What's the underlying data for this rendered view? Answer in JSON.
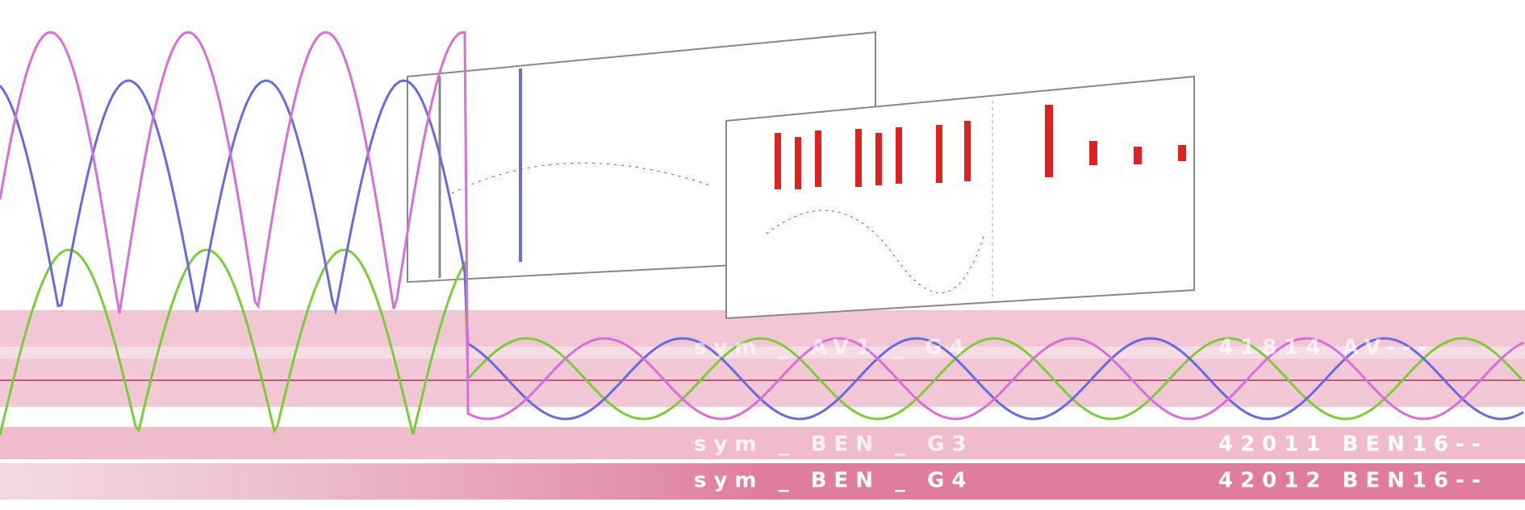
{
  "band_labels": [
    "sym _ AV1 _ G4",
    "sym _ BEN _ G3",
    "sym _ BEN _ G4"
  ],
  "code_labels": [
    "41814 AV---",
    "42011 BEN16--",
    "42012 BEN16--"
  ]
}
